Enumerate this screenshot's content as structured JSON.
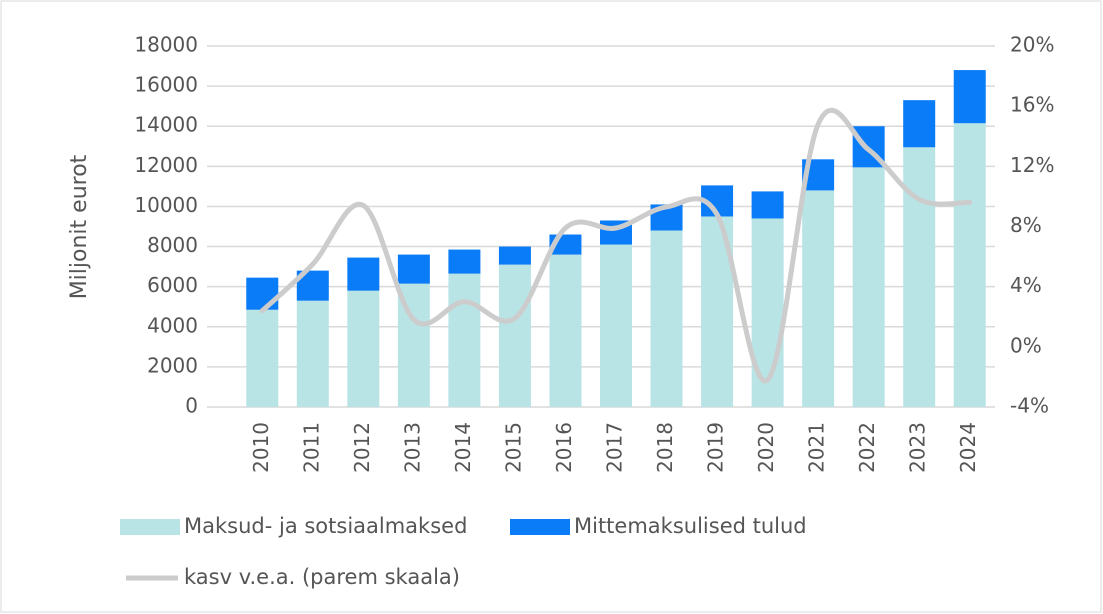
{
  "chart_data": {
    "type": "bar",
    "stacked": true,
    "y_axis_label": "Miljonit eurot",
    "categories": [
      "2010",
      "2011",
      "2012",
      "2013",
      "2014",
      "2015",
      "2016",
      "2017",
      "2018",
      "2019",
      "2020",
      "2021",
      "2022",
      "2023",
      "2024"
    ],
    "series": [
      {
        "name": "Maksud- ja sotsiaalmaksed",
        "color": "#b9e4e6",
        "values": [
          4850,
          5300,
          5800,
          6150,
          6650,
          7100,
          7600,
          8100,
          8800,
          9500,
          9400,
          10800,
          11950,
          12950,
          14150
        ]
      },
      {
        "name": "Mittemaksulised tulud",
        "color": "#0a7cf7",
        "values": [
          1600,
          1500,
          1650,
          1450,
          1200,
          900,
          1000,
          1200,
          1300,
          1550,
          1350,
          1550,
          2050,
          2350,
          2650
        ]
      },
      {
        "name": "kasv v.e.a. (parem skaala)",
        "color": "#cccccc",
        "type": "line",
        "axis": "y2",
        "values": [
          2.4,
          5.5,
          9.4,
          1.8,
          3.0,
          1.9,
          7.9,
          7.9,
          9.3,
          8.8,
          -2.2,
          14.8,
          13.1,
          9.8,
          9.6
        ]
      }
    ],
    "ylim": [
      0,
      18000
    ],
    "yticks": [
      0,
      2000,
      4000,
      6000,
      8000,
      10000,
      12000,
      14000,
      16000,
      18000
    ],
    "y2lim": [
      -4,
      20
    ],
    "y2ticks": [
      {
        "value": -4,
        "label": "-4%"
      },
      {
        "value": 0,
        "label": "0%"
      },
      {
        "value": 4,
        "label": "4%"
      },
      {
        "value": 8,
        "label": "8%"
      },
      {
        "value": 12,
        "label": "12%"
      },
      {
        "value": 16,
        "label": "16%"
      },
      {
        "value": 20,
        "label": "20%"
      }
    ],
    "grid": true,
    "legend": "bottom"
  }
}
